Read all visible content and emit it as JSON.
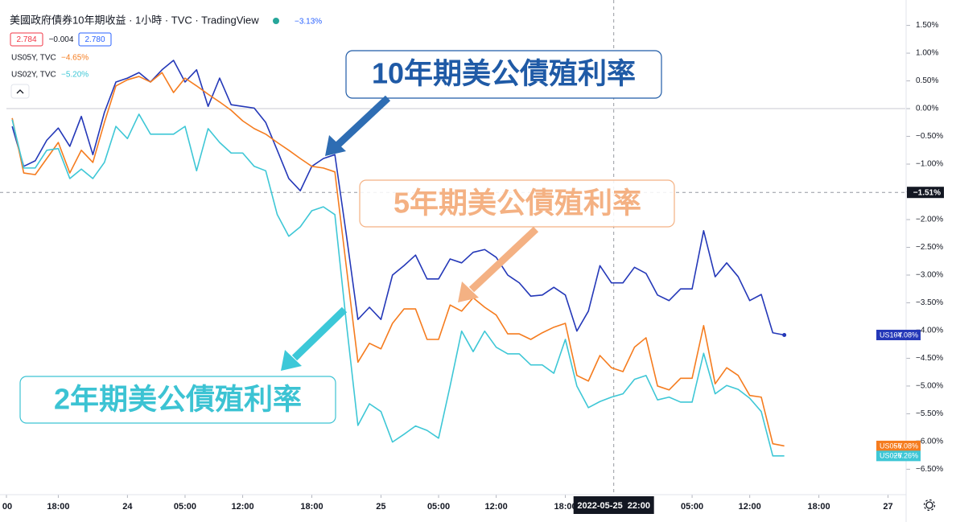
{
  "chart_data": {
    "type": "line",
    "title": "美國政府債券10年期收益 · 1小時 · TVC · TradingView",
    "title_change": "−3.13%",
    "ohlc": [
      "2.784",
      "−0.004",
      "2.780"
    ],
    "legend": [
      {
        "label": "US05Y, TVC",
        "change": "−4.65%",
        "color": "#f57c1f"
      },
      {
        "label": "US02Y, TVC",
        "change": "−5.20%",
        "color": "#3ec7d6"
      }
    ],
    "x": [
      0,
      1,
      2,
      3,
      4,
      5,
      6,
      7,
      8,
      9,
      10,
      11,
      12,
      13,
      14,
      15,
      16,
      17,
      18,
      19,
      20,
      21,
      22,
      23,
      24,
      25,
      26,
      27,
      28,
      29,
      30,
      31,
      32,
      33,
      34,
      35,
      36,
      37,
      38,
      39,
      40,
      41,
      42,
      43,
      44,
      45,
      46,
      47,
      48,
      49,
      50,
      51,
      52,
      53,
      54,
      55,
      56,
      57,
      58,
      59,
      60,
      61,
      62,
      63,
      64,
      65,
      66,
      67
    ],
    "series": [
      {
        "name": "US10Y",
        "color": "#2438b8",
        "last_label": "−4.08%",
        "values": [
          -0.32,
          -1.04,
          -0.94,
          -0.57,
          -0.35,
          -0.68,
          -0.14,
          -0.83,
          -0.07,
          0.48,
          0.55,
          0.65,
          0.48,
          0.7,
          0.87,
          0.48,
          0.7,
          0.04,
          0.55,
          0.07,
          0.04,
          0.01,
          -0.25,
          -0.75,
          -1.26,
          -1.48,
          -1.04,
          -0.9,
          -0.83,
          -2.28,
          -3.8,
          -3.58,
          -3.8,
          -3.0,
          -2.83,
          -2.64,
          -3.07,
          -3.07,
          -2.71,
          -2.78,
          -2.59,
          -2.54,
          -2.68,
          -3.0,
          -3.14,
          -3.38,
          -3.36,
          -3.22,
          -3.36,
          -4.01,
          -3.65,
          -2.83,
          -3.14,
          -3.14,
          -2.86,
          -2.97,
          -3.36,
          -3.46,
          -3.25,
          -3.25,
          -2.2,
          -3.03,
          -2.78,
          -3.03,
          -3.46,
          -3.35,
          -4.04,
          -4.08
        ]
      },
      {
        "name": "US05Y",
        "color": "#f57c1f",
        "last_label": "−6.08%",
        "values": [
          -0.17,
          -1.16,
          -1.19,
          -0.9,
          -0.61,
          -1.16,
          -0.75,
          -0.97,
          -0.25,
          0.41,
          0.52,
          0.58,
          0.48,
          0.65,
          0.29,
          0.55,
          0.41,
          0.26,
          0.12,
          -0.03,
          -0.22,
          -0.36,
          -0.46,
          -0.61,
          -0.75,
          -0.9,
          -1.04,
          -1.07,
          -1.14,
          -2.86,
          -4.57,
          -4.23,
          -4.33,
          -3.87,
          -3.61,
          -3.61,
          -4.16,
          -4.16,
          -3.54,
          -3.65,
          -3.41,
          -3.58,
          -3.72,
          -4.06,
          -4.06,
          -4.16,
          -4.04,
          -3.94,
          -3.87,
          -4.81,
          -4.91,
          -4.45,
          -4.67,
          -4.74,
          -4.3,
          -4.13,
          -5.0,
          -5.07,
          -4.86,
          -4.86,
          -3.91,
          -4.96,
          -4.67,
          -4.81,
          -5.17,
          -5.2,
          -6.04,
          -6.08
        ]
      },
      {
        "name": "US02Y",
        "color": "#3ec7d6",
        "last_label": "−6.26%",
        "values": [
          -0.2,
          -1.07,
          -1.07,
          -0.75,
          -0.72,
          -1.26,
          -1.09,
          -1.26,
          -0.97,
          -0.32,
          -0.54,
          -0.1,
          -0.46,
          -0.46,
          -0.46,
          -0.32,
          -1.12,
          -0.36,
          -0.61,
          -0.8,
          -0.8,
          -1.04,
          -1.12,
          -1.91,
          -2.3,
          -2.13,
          -1.84,
          -1.77,
          -1.91,
          -3.87,
          -5.71,
          -5.32,
          -5.46,
          -6.01,
          -5.87,
          -5.72,
          -5.8,
          -5.94,
          -5.0,
          -4.01,
          -4.38,
          -4.01,
          -4.3,
          -4.42,
          -4.42,
          -4.62,
          -4.62,
          -4.77,
          -4.16,
          -5.0,
          -5.39,
          -5.28,
          -5.2,
          -5.14,
          -4.88,
          -4.81,
          -5.25,
          -5.2,
          -5.29,
          -5.29,
          -4.41,
          -5.14,
          -4.99,
          -5.06,
          -5.22,
          -5.46,
          -6.26,
          -6.26
        ]
      }
    ],
    "ylim": [
      -6.9,
      1.9
    ],
    "yticks": [
      {
        "value": 1.5,
        "label": "1.50%"
      },
      {
        "value": 1,
        "label": "1.00%"
      },
      {
        "value": 0.5,
        "label": "0.50%"
      },
      {
        "value": 0,
        "label": "0.00%"
      },
      {
        "value": -0.5,
        "label": "−0.50%"
      },
      {
        "value": -1,
        "label": "−1.00%"
      },
      {
        "value": -1.5,
        "label": "−1.50%"
      },
      {
        "value": -2,
        "label": "−2.00%"
      },
      {
        "value": -2.5,
        "label": "−2.50%"
      },
      {
        "value": -3,
        "label": "−3.00%"
      },
      {
        "value": -3.5,
        "label": "−3.50%"
      },
      {
        "value": -4,
        "label": "−4.00%"
      },
      {
        "value": -4.5,
        "label": "−4.50%"
      },
      {
        "value": -5,
        "label": "−5.00%"
      },
      {
        "value": -5.5,
        "label": "−5.50%"
      },
      {
        "value": -6,
        "label": "−6.00%"
      },
      {
        "value": -6.5,
        "label": "−6.50%"
      }
    ],
    "xlim": [
      -0.5,
      77.5
    ],
    "xticks": [
      {
        "value": -0.5,
        "label": "00"
      },
      {
        "value": 4,
        "label": "18:00"
      },
      {
        "value": 10,
        "label": "24"
      },
      {
        "value": 15,
        "label": "05:00"
      },
      {
        "value": 20,
        "label": "12:00"
      },
      {
        "value": 26,
        "label": "18:00"
      },
      {
        "value": 32,
        "label": "25"
      },
      {
        "value": 37,
        "label": "05:00"
      },
      {
        "value": 42,
        "label": "12:00"
      },
      {
        "value": 48,
        "label": "18:00"
      },
      {
        "value": 59,
        "label": "05:00"
      },
      {
        "value": 64,
        "label": "12:00"
      },
      {
        "value": 70,
        "label": "18:00"
      },
      {
        "value": 76,
        "label": "27"
      }
    ],
    "baseline": 0,
    "crosshair": {
      "x": 52.2,
      "x_label": "2022-05-25  22:00",
      "y": -1.51,
      "y_label": "−1.51%"
    },
    "annotations": [
      {
        "text": "10年期美公債殖利率",
        "color": "#1f5aa6"
      },
      {
        "text": "5年期美公債殖利率",
        "color": "#f4b183"
      },
      {
        "text": "2年期美公債殖利率",
        "color": "#3cc3d3"
      }
    ]
  }
}
